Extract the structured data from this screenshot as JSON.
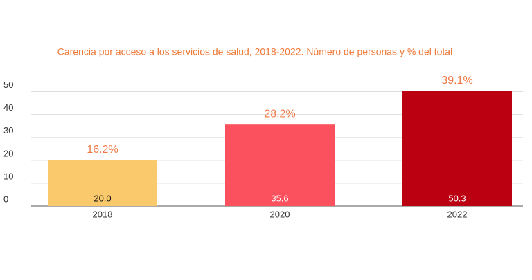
{
  "chart_data": {
    "type": "bar",
    "title": "Carencia por acceso a los servicios de salud, 2018-2022. Número de personas y % del total",
    "title_color": "#ef7a3a",
    "categories": [
      "2018",
      "2020",
      "2022"
    ],
    "values": [
      20.0,
      35.6,
      50.3
    ],
    "value_labels": [
      "20.0",
      "35.6",
      "50.3"
    ],
    "value_label_colors": [
      "#111111",
      "#ffffff",
      "#ffffff"
    ],
    "colors": [
      "#f9c96b",
      "#fb505d",
      "#bb0011"
    ],
    "annotations": [
      "16.2%",
      "28.2%",
      "39.1%"
    ],
    "annotation_color": "#f07a45",
    "ylim": [
      0,
      55
    ],
    "yticks": [
      0,
      10,
      20,
      30,
      40,
      50
    ],
    "grid": true
  }
}
